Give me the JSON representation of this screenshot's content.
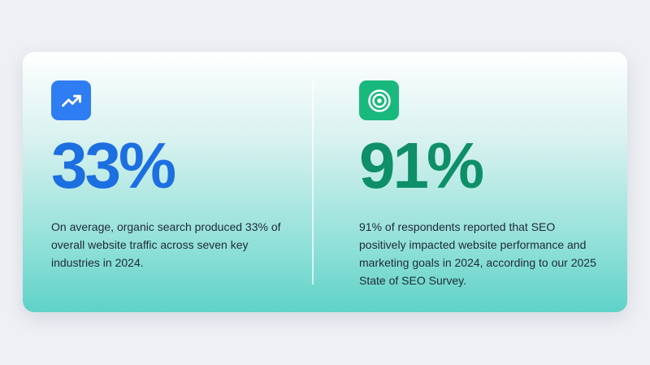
{
  "stats": [
    {
      "value": "33%",
      "description": "On average, organic search produced 33% of overall website traffic across seven key industries in 2024."
    },
    {
      "value": "91%",
      "description": "91% of respondents reported that SEO positively impacted website performance and marketing goals in 2024, according to our 2025 State of SEO Survey."
    }
  ]
}
